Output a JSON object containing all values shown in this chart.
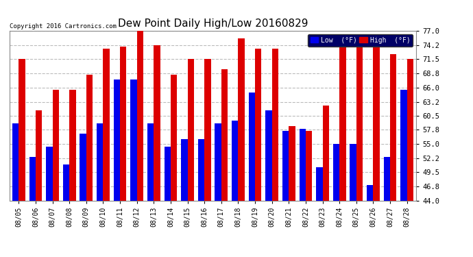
{
  "title": "Dew Point Daily High/Low 20160829",
  "copyright": "Copyright 2016 Cartronics.com",
  "dates": [
    "08/05",
    "08/06",
    "08/07",
    "08/08",
    "08/09",
    "08/10",
    "08/11",
    "08/12",
    "08/13",
    "08/14",
    "08/15",
    "08/16",
    "08/17",
    "08/18",
    "08/19",
    "08/20",
    "08/21",
    "08/22",
    "08/23",
    "08/24",
    "08/25",
    "08/26",
    "08/27",
    "08/28"
  ],
  "low_values": [
    59,
    52.5,
    54.5,
    51,
    57,
    59,
    67.5,
    67.5,
    59,
    54.5,
    56,
    56,
    59,
    59.5,
    65,
    61.5,
    57.5,
    58,
    50.5,
    55,
    55,
    47,
    52.5,
    65.5
  ],
  "high_values": [
    71.5,
    61.5,
    65.5,
    65.5,
    68.5,
    73.5,
    74,
    77,
    74.2,
    68.5,
    71.5,
    71.5,
    69.5,
    75.5,
    73.5,
    73.5,
    58.5,
    57.5,
    62.5,
    74,
    74,
    74,
    72.5,
    71.5
  ],
  "low_color": "#0000ee",
  "high_color": "#dd0000",
  "bg_color": "#ffffff",
  "plot_bg_color": "#ffffff",
  "grid_color": "#bbbbbb",
  "yticks": [
    44.0,
    46.8,
    49.5,
    52.2,
    55.0,
    57.8,
    60.5,
    63.2,
    66.0,
    68.8,
    71.5,
    74.2,
    77.0
  ],
  "ymin": 44.0,
  "ymax": 77.0,
  "bar_width": 0.38,
  "legend_low_label": "Low  (°F)",
  "legend_high_label": "High  (°F)"
}
